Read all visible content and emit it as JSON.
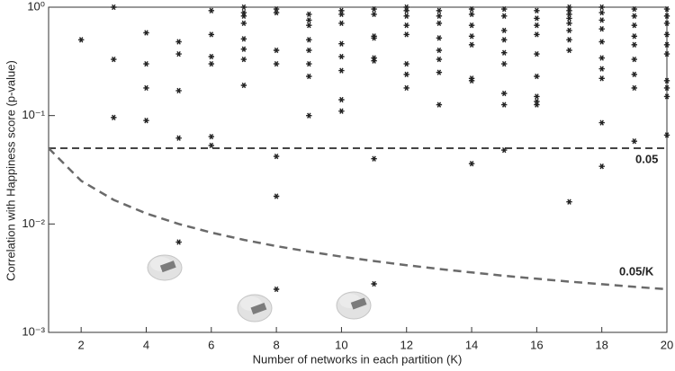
{
  "chart_data": {
    "type": "scatter",
    "x_label": "Number of networks in each partition (K)",
    "y_label": "Correlation with Happiness score (p-value)",
    "xlim": [
      1,
      20
    ],
    "ylim": [
      0.001,
      1
    ],
    "log_y": true,
    "xticks": [
      2,
      4,
      6,
      8,
      10,
      12,
      14,
      16,
      18,
      20
    ],
    "yticks": [
      {
        "value": 0.001,
        "label": "10⁻³"
      },
      {
        "value": 0.01,
        "label": "10⁻²"
      },
      {
        "value": 0.1,
        "label": "10⁻¹"
      },
      {
        "value": 1,
        "label": "10⁰"
      }
    ],
    "point_color": "#222222",
    "groups": [
      {
        "k": 2,
        "values": [
          0.5
        ]
      },
      {
        "k": 3,
        "values": [
          1.0,
          0.33,
          0.096
        ]
      },
      {
        "k": 4,
        "values": [
          0.58,
          0.3,
          0.18,
          0.09
        ]
      },
      {
        "k": 5,
        "values": [
          0.48,
          0.37,
          0.17,
          0.062,
          0.0068
        ]
      },
      {
        "k": 6,
        "values": [
          0.93,
          0.56,
          0.35,
          0.3,
          0.064,
          0.053
        ]
      },
      {
        "k": 7,
        "values": [
          1.0,
          0.89,
          0.83,
          0.71,
          0.51,
          0.41,
          0.33,
          0.19
        ]
      },
      {
        "k": 8,
        "values": [
          0.96,
          0.89,
          0.4,
          0.3,
          0.042,
          0.018,
          0.0025
        ]
      },
      {
        "k": 9,
        "values": [
          0.86,
          0.76,
          0.68,
          0.5,
          0.4,
          0.3,
          0.23,
          0.1
        ]
      },
      {
        "k": 10,
        "values": [
          0.93,
          0.86,
          0.71,
          0.46,
          0.35,
          0.26,
          0.14,
          0.11
        ]
      },
      {
        "k": 11,
        "values": [
          0.96,
          0.86,
          0.54,
          0.52,
          0.34,
          0.32,
          0.04,
          0.0028
        ]
      },
      {
        "k": 12,
        "values": [
          1.0,
          0.93,
          0.83,
          0.68,
          0.56,
          0.3,
          0.24,
          0.18
        ]
      },
      {
        "k": 13,
        "values": [
          0.93,
          0.83,
          0.71,
          0.52,
          0.4,
          0.33,
          0.25,
          0.126
        ]
      },
      {
        "k": 14,
        "values": [
          0.96,
          0.86,
          0.68,
          0.54,
          0.45,
          0.22,
          0.21,
          0.036
        ]
      },
      {
        "k": 15,
        "values": [
          0.96,
          0.83,
          0.61,
          0.5,
          0.38,
          0.3,
          0.16,
          0.126,
          0.048
        ]
      },
      {
        "k": 16,
        "values": [
          0.93,
          0.79,
          0.68,
          0.56,
          0.37,
          0.23,
          0.15,
          0.135,
          0.126
        ]
      },
      {
        "k": 17,
        "values": [
          1.0,
          0.93,
          0.86,
          0.79,
          0.71,
          0.61,
          0.5,
          0.4,
          0.016
        ]
      },
      {
        "k": 18,
        "values": [
          1.0,
          0.89,
          0.76,
          0.63,
          0.48,
          0.34,
          0.27,
          0.22,
          0.086,
          0.034
        ]
      },
      {
        "k": 19,
        "values": [
          0.96,
          0.83,
          0.68,
          0.54,
          0.45,
          0.33,
          0.24,
          0.18,
          0.058
        ]
      },
      {
        "k": 20,
        "values": [
          0.96,
          0.83,
          0.71,
          0.56,
          0.45,
          0.37,
          0.21,
          0.18,
          0.15,
          0.066
        ]
      }
    ],
    "threshold": {
      "label": "0.05",
      "value": 0.05,
      "color": "#444444"
    },
    "curve": {
      "label": "0.05/K",
      "color": "#6a6a6a",
      "x": [
        1,
        2,
        3,
        4,
        5,
        6,
        7,
        8,
        9,
        10,
        11,
        12,
        13,
        14,
        15,
        16,
        17,
        18,
        19,
        20
      ],
      "values": [
        0.05,
        0.025,
        0.0167,
        0.0125,
        0.01,
        0.00833,
        0.00714,
        0.00625,
        0.00556,
        0.005,
        0.00455,
        0.00417,
        0.00385,
        0.00357,
        0.00333,
        0.003125,
        0.00294,
        0.00278,
        0.00263,
        0.0025
      ]
    }
  }
}
